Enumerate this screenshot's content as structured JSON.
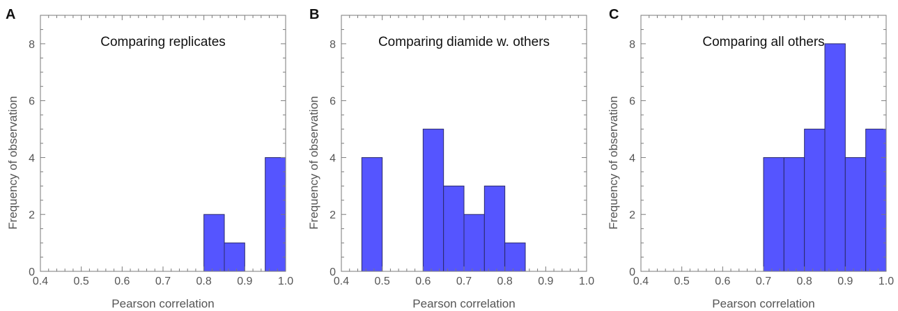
{
  "colors": {
    "bar_fill": "#5555ff",
    "bar_stroke": "#2a2a6a",
    "axis": "#7a7a7a",
    "text": "#555555"
  },
  "chart_data": [
    {
      "panel": "A",
      "type": "bar",
      "title": "Comparing replicates",
      "xlabel": "Pearson correlation",
      "ylabel": "Frequency of observation",
      "xlim": [
        0.4,
        1.0
      ],
      "ylim": [
        0,
        9
      ],
      "xticks": [
        "0.4",
        "0.5",
        "0.6",
        "0.7",
        "0.8",
        "0.9",
        "1.0"
      ],
      "yticks": [
        "0",
        "2",
        "4",
        "6",
        "8"
      ],
      "bin_width": 0.05,
      "bins": [
        {
          "x0": 0.8,
          "x1": 0.85,
          "count": 2
        },
        {
          "x0": 0.85,
          "x1": 0.9,
          "count": 1
        },
        {
          "x0": 0.95,
          "x1": 1.0,
          "count": 4
        }
      ]
    },
    {
      "panel": "B",
      "type": "bar",
      "title": "Comparing diamide w. others",
      "xlabel": "Pearson correlation",
      "ylabel": "Frequency of observation",
      "xlim": [
        0.4,
        1.0
      ],
      "ylim": [
        0,
        9
      ],
      "xticks": [
        "0.4",
        "0.5",
        "0.6",
        "0.7",
        "0.8",
        "0.9",
        "1.0"
      ],
      "yticks": [
        "0",
        "2",
        "4",
        "6",
        "8"
      ],
      "bin_width": 0.05,
      "bins": [
        {
          "x0": 0.45,
          "x1": 0.5,
          "count": 4
        },
        {
          "x0": 0.6,
          "x1": 0.65,
          "count": 5
        },
        {
          "x0": 0.65,
          "x1": 0.7,
          "count": 3
        },
        {
          "x0": 0.7,
          "x1": 0.75,
          "count": 2
        },
        {
          "x0": 0.75,
          "x1": 0.8,
          "count": 3
        },
        {
          "x0": 0.8,
          "x1": 0.85,
          "count": 1
        }
      ]
    },
    {
      "panel": "C",
      "type": "bar",
      "title": "Comparing all others",
      "xlabel": "Pearson correlation",
      "ylabel": "Frequency of observation",
      "xlim": [
        0.4,
        1.0
      ],
      "ylim": [
        0,
        9
      ],
      "xticks": [
        "0.4",
        "0.5",
        "0.6",
        "0.7",
        "0.8",
        "0.9",
        "1.0"
      ],
      "yticks": [
        "0",
        "2",
        "4",
        "6",
        "8"
      ],
      "bin_width": 0.05,
      "bins": [
        {
          "x0": 0.7,
          "x1": 0.75,
          "count": 4
        },
        {
          "x0": 0.75,
          "x1": 0.8,
          "count": 4
        },
        {
          "x0": 0.8,
          "x1": 0.85,
          "count": 5
        },
        {
          "x0": 0.85,
          "x1": 0.9,
          "count": 8
        },
        {
          "x0": 0.9,
          "x1": 0.95,
          "count": 4
        },
        {
          "x0": 0.95,
          "x1": 1.0,
          "count": 5
        }
      ]
    }
  ]
}
